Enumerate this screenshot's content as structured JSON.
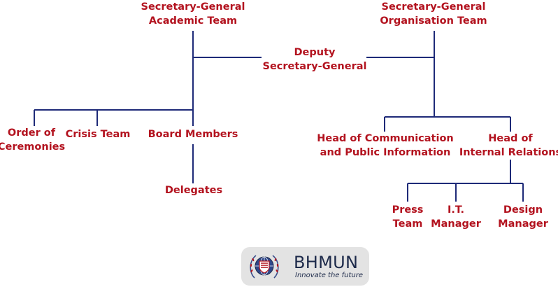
{
  "diagram": {
    "nodes": {
      "sg_academic": [
        "Secretary-General",
        "Academic Team"
      ],
      "sg_organisation": [
        "Secretary-General",
        "Organisation Team"
      ],
      "deputy_sg": [
        "Deputy",
        "Secretary-General"
      ],
      "order_of_ceremonies": [
        "Order of",
        "Ceremonies"
      ],
      "crisis_team": [
        "Crisis Team"
      ],
      "board_members": [
        "Board Members"
      ],
      "delegates": [
        "Delegates"
      ],
      "head_communication": [
        "Head of Communication",
        "and Public Information"
      ],
      "head_internal_relations": [
        "Head of",
        "Internal Relations"
      ],
      "press_team": [
        "Press",
        "Team"
      ],
      "it_manager": [
        "I.T.",
        "Manager"
      ],
      "design_manager": [
        "Design",
        "Manager"
      ]
    },
    "colors": {
      "line": "#1e2a78",
      "text": "#b3131f"
    }
  },
  "logo": {
    "name": "BHMUN",
    "tagline": "Innovate the future",
    "emblem": "globe-emblem-icon"
  }
}
